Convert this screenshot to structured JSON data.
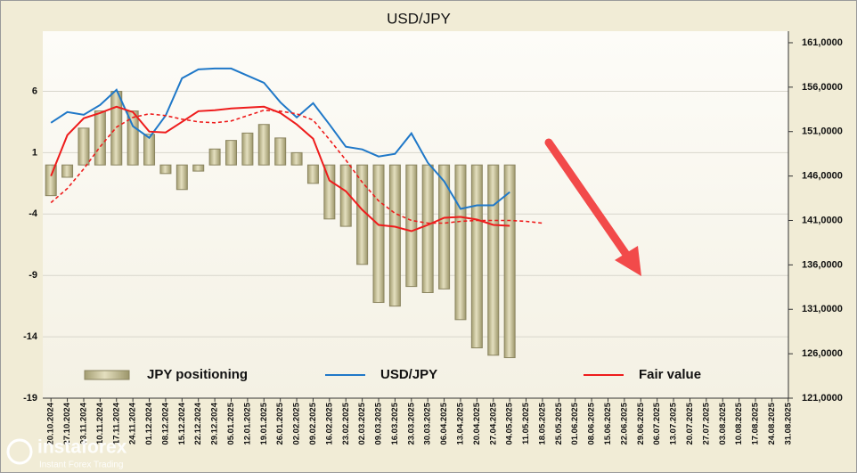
{
  "chart_data": {
    "type": "bar",
    "title": "USD/JPY",
    "categories": [
      "20.10.2024",
      "27.10.2024",
      "03.11.2024",
      "10.11.2024",
      "17.11.2024",
      "24.11.2024",
      "01.12.2024",
      "08.12.2024",
      "15.12.2024",
      "22.12.2024",
      "29.12.2024",
      "05.01.2025",
      "12.01.2025",
      "19.01.2025",
      "26.01.2025",
      "02.02.2025",
      "09.02.2025",
      "16.02.2025",
      "23.02.2025",
      "02.03.2025",
      "09.03.2025",
      "16.03.2025",
      "23.03.2025",
      "30.03.2025",
      "06.04.2025",
      "13.04.2025",
      "20.04.2025",
      "27.04.2025",
      "04.05.2025",
      "11.05.2025",
      "18.05.2025",
      "25.05.2025",
      "01.06.2025",
      "08.06.2025",
      "15.06.2025",
      "22.06.2025",
      "29.06.2025",
      "06.07.2025",
      "13.07.2025",
      "20.07.2025",
      "27.07.2025",
      "03.08.2025",
      "10.08.2025",
      "17.08.2025",
      "24.08.2025",
      "31.08.2025"
    ],
    "series": [
      {
        "name": "JPY positioning",
        "type": "bar",
        "color": "#c9c39b",
        "values": [
          -2.5,
          -1,
          3,
          4.4,
          6,
          4.4,
          2.5,
          -0.7,
          -2,
          -0.5,
          1.3,
          2,
          2.6,
          3.3,
          2.2,
          1,
          -1.5,
          -4.4,
          -5,
          -8.1,
          -11.2,
          -11.5,
          -9.9,
          -10.4,
          -10.1,
          -12.6,
          -14.9,
          -15.5,
          -15.7,
          null,
          null,
          null,
          null,
          null,
          null,
          null,
          null,
          null,
          null,
          null,
          null,
          null,
          null,
          null,
          null,
          null
        ]
      },
      {
        "name": "USD/JPY",
        "type": "line",
        "axis": "y2",
        "color": "#1f78c8",
        "values": [
          152000,
          153200,
          152900,
          154000,
          155700,
          151600,
          150300,
          152800,
          157000,
          158000,
          158100,
          158100,
          157300,
          156500,
          154300,
          152600,
          154200,
          151800,
          149300,
          149000,
          148200,
          148500,
          150800,
          147500,
          145400,
          142300,
          142700,
          142700,
          144200,
          null,
          null,
          null,
          null,
          null,
          null,
          null,
          null,
          null,
          null,
          null,
          null,
          null,
          null,
          null,
          null,
          null
        ]
      },
      {
        "name": "Fair value",
        "type": "line",
        "axis": "y2",
        "color": "#ee1c1c",
        "values": [
          146000,
          150600,
          152500,
          153100,
          153800,
          153200,
          151000,
          150900,
          152100,
          153300,
          153400,
          153600,
          153700,
          153800,
          153100,
          151800,
          150200,
          145500,
          144300,
          142200,
          140500,
          140300,
          139800,
          140500,
          141300,
          141400,
          141100,
          140500,
          140400,
          null,
          null,
          null,
          null,
          null,
          null,
          null,
          null,
          null,
          null,
          null,
          null,
          null,
          null,
          null,
          null,
          null
        ]
      },
      {
        "type": "line",
        "axis": "y2",
        "color": "#ee1c1c",
        "dashed": true,
        "values": [
          143000,
          144600,
          146800,
          149300,
          151500,
          152600,
          153000,
          152800,
          152400,
          152100,
          152000,
          152200,
          152800,
          153400,
          153300,
          153000,
          152300,
          150100,
          147800,
          145300,
          143200,
          141800,
          141000,
          140700,
          140700,
          140900,
          141000,
          141000,
          141000,
          140900,
          140700,
          null,
          null,
          null,
          null,
          null,
          null,
          null,
          null,
          null,
          null,
          null,
          null,
          null,
          null,
          null
        ]
      }
    ],
    "ylim": [
      -19,
      10.9
    ],
    "yticks": [
      -19,
      -14,
      -9,
      -4,
      1,
      6
    ],
    "y2lim": [
      121000,
      162300
    ],
    "y2ticks": [
      {
        "value": 121000,
        "label": "121,0000"
      },
      {
        "value": 126000,
        "label": "126,0000"
      },
      {
        "value": 131000,
        "label": "131,0000"
      },
      {
        "value": 136000,
        "label": "136,0000"
      },
      {
        "value": 141000,
        "label": "141,0000"
      },
      {
        "value": 146000,
        "label": "146,0000"
      },
      {
        "value": 151000,
        "label": "151,0000"
      },
      {
        "value": 156000,
        "label": "156,0000"
      },
      {
        "value": 161000,
        "label": "161,0000"
      }
    ],
    "grid": true,
    "legend": "bottom",
    "watermark": {
      "name": "instaforex",
      "tagline": "Instant Forex Trading"
    }
  }
}
